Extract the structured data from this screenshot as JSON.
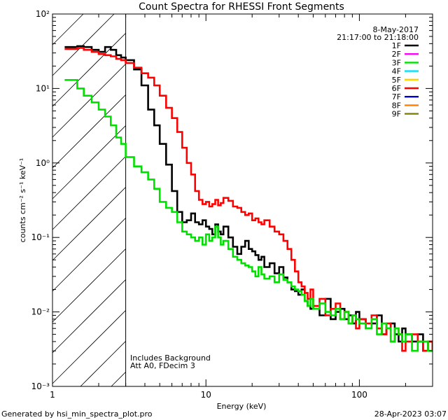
{
  "chart_data": {
    "type": "line",
    "title": "Count Spectra for RHESSI Front Segments",
    "xlabel": "Energy (keV)",
    "ylabel": "counts cm⁻² s⁻¹ keV⁻¹",
    "x_scale": "log",
    "y_scale": "log",
    "xlim": [
      1,
      300
    ],
    "ylim": [
      0.001,
      100
    ],
    "x_tick_values": [
      1,
      10,
      100
    ],
    "x_tick_labels": [
      "1",
      "10",
      "100"
    ],
    "y_tick_values": [
      0.001,
      0.01,
      0.1,
      1,
      10,
      100
    ],
    "y_tick_labels": [
      "10⁻³",
      "10⁻²",
      "10⁻¹",
      "10⁰",
      "10¹",
      "10²"
    ],
    "date": "8-May-2017",
    "time_range": "21:17:00 to 21:18:00",
    "attenuator_note": "Att A0, FDecim 3",
    "background_note": "Includes Background",
    "hatched_region_upper_kev": 3,
    "legend": [
      {
        "name": "1F",
        "color": "#000000"
      },
      {
        "name": "2F",
        "color": "#ff00ff"
      },
      {
        "name": "3F",
        "color": "#00e000"
      },
      {
        "name": "4F",
        "color": "#00e0ff"
      },
      {
        "name": "5F",
        "color": "#ffd000"
      },
      {
        "name": "6F",
        "color": "#ff0000"
      },
      {
        "name": "7F",
        "color": "#0000c8"
      },
      {
        "name": "8F",
        "color": "#ff8000"
      },
      {
        "name": "9F",
        "color": "#808000"
      }
    ],
    "series": [
      {
        "name": "1F",
        "color": "#000000",
        "x": [
          1.2,
          1.45,
          1.6,
          1.8,
          2.0,
          2.2,
          2.4,
          2.6,
          2.8,
          3.0,
          3.4,
          3.8,
          4.2,
          4.6,
          5.0,
          5.5,
          6.0,
          6.5,
          7.0,
          7.5,
          8.0,
          8.5,
          9.0,
          9.5,
          10,
          10.5,
          11,
          11.5,
          12,
          12.5,
          13,
          14,
          15,
          16,
          17,
          18,
          19,
          20,
          21,
          22,
          23,
          24,
          26,
          28,
          30,
          32,
          34,
          36,
          38,
          40,
          42,
          44,
          46,
          48,
          50,
          55,
          60,
          65,
          70,
          75,
          80,
          85,
          90,
          95,
          100,
          110,
          120,
          130,
          140,
          150,
          160,
          170,
          180,
          190,
          200,
          220,
          240,
          260,
          280,
          300
        ],
        "y": [
          36,
          37,
          36,
          33,
          31,
          36,
          33,
          28,
          26,
          24,
          18,
          11,
          5.2,
          3.2,
          1.8,
          0.95,
          0.42,
          0.22,
          0.16,
          0.17,
          0.21,
          0.16,
          0.15,
          0.17,
          0.14,
          0.13,
          0.11,
          0.15,
          0.12,
          0.11,
          0.14,
          0.1,
          0.075,
          0.06,
          0.075,
          0.09,
          0.07,
          0.065,
          0.058,
          0.05,
          0.055,
          0.04,
          0.045,
          0.033,
          0.04,
          0.029,
          0.025,
          0.02,
          0.019,
          0.017,
          0.02,
          0.014,
          0.012,
          0.011,
          0.012,
          0.009,
          0.015,
          0.008,
          0.01,
          0.011,
          0.008,
          0.009,
          0.007,
          0.01,
          0.008,
          0.006,
          0.007,
          0.009,
          0.005,
          0.006,
          0.007,
          0.005,
          0.004,
          0.006,
          0.005,
          0.004,
          0.005,
          0.003,
          0.004,
          0.003
        ]
      },
      {
        "name": "6F",
        "color": "#ff0000",
        "x": [
          1.2,
          1.45,
          1.6,
          1.8,
          2.0,
          2.2,
          2.4,
          2.6,
          2.8,
          3.0,
          3.4,
          3.8,
          4.2,
          4.6,
          5.0,
          5.5,
          6.0,
          6.5,
          7.0,
          7.5,
          8.0,
          8.5,
          9.0,
          9.5,
          10,
          10.5,
          11,
          11.5,
          12,
          12.5,
          13,
          14,
          15,
          16,
          17,
          18,
          19,
          20,
          21,
          22,
          23,
          24,
          26,
          28,
          30,
          32,
          34,
          36,
          38,
          40,
          42,
          44,
          46,
          48,
          50,
          55,
          60,
          65,
          70,
          75,
          80,
          85,
          90,
          95,
          100,
          110,
          120,
          130,
          140,
          150,
          160,
          170,
          180,
          190,
          200,
          220,
          240,
          260,
          280,
          300
        ],
        "y": [
          34,
          35,
          33,
          31,
          29,
          28,
          27,
          25,
          24,
          22,
          19,
          16,
          14,
          11,
          8,
          5.5,
          4,
          2.6,
          1.6,
          1.0,
          0.7,
          0.42,
          0.32,
          0.28,
          0.3,
          0.26,
          0.28,
          0.32,
          0.27,
          0.29,
          0.34,
          0.31,
          0.26,
          0.25,
          0.22,
          0.2,
          0.21,
          0.17,
          0.18,
          0.16,
          0.15,
          0.17,
          0.14,
          0.12,
          0.11,
          0.09,
          0.07,
          0.05,
          0.035,
          0.025,
          0.022,
          0.018,
          0.015,
          0.02,
          0.012,
          0.015,
          0.009,
          0.011,
          0.013,
          0.008,
          0.01,
          0.007,
          0.009,
          0.006,
          0.008,
          0.007,
          0.009,
          0.006,
          0.005,
          0.007,
          0.004,
          0.006,
          0.005,
          0.003,
          0.004,
          0.005,
          0.004,
          0.003,
          0.004,
          0.003
        ]
      },
      {
        "name": "3F",
        "color": "#00e000",
        "x": [
          1.2,
          1.45,
          1.6,
          1.8,
          2.0,
          2.2,
          2.4,
          2.6,
          2.8,
          3.0,
          3.4,
          3.8,
          4.2,
          4.6,
          5.0,
          5.5,
          6.0,
          6.5,
          7.0,
          7.5,
          8.0,
          8.5,
          9.0,
          9.5,
          10,
          10.5,
          11,
          11.5,
          12,
          12.5,
          13,
          14,
          15,
          16,
          17,
          18,
          19,
          20,
          21,
          22,
          23,
          24,
          26,
          28,
          30,
          32,
          34,
          36,
          38,
          40,
          42,
          44,
          46,
          48,
          50,
          55,
          60,
          65,
          70,
          75,
          80,
          85,
          90,
          95,
          100,
          110,
          120,
          130,
          140,
          150,
          160,
          170,
          180,
          190,
          200,
          220,
          240,
          260,
          280,
          300
        ],
        "y": [
          13,
          10,
          8,
          6.5,
          5.2,
          4.2,
          3.2,
          2.2,
          1.8,
          1.2,
          0.9,
          0.75,
          0.6,
          0.45,
          0.3,
          0.25,
          0.22,
          0.16,
          0.12,
          0.11,
          0.1,
          0.09,
          0.1,
          0.08,
          0.11,
          0.09,
          0.1,
          0.14,
          0.1,
          0.08,
          0.09,
          0.07,
          0.055,
          0.05,
          0.045,
          0.042,
          0.04,
          0.035,
          0.03,
          0.04,
          0.032,
          0.028,
          0.03,
          0.025,
          0.032,
          0.027,
          0.025,
          0.022,
          0.02,
          0.019,
          0.017,
          0.014,
          0.012,
          0.015,
          0.011,
          0.013,
          0.01,
          0.009,
          0.011,
          0.008,
          0.01,
          0.007,
          0.009,
          0.008,
          0.007,
          0.006,
          0.008,
          0.005,
          0.007,
          0.006,
          0.004,
          0.006,
          0.005,
          0.004,
          0.005,
          0.003,
          0.004,
          0.004,
          0.003,
          0.003
        ]
      }
    ]
  },
  "footer": {
    "generator": "Generated by hsi_min_spectra_plot.pro",
    "timestamp": "28-Apr-2023 03:07"
  }
}
